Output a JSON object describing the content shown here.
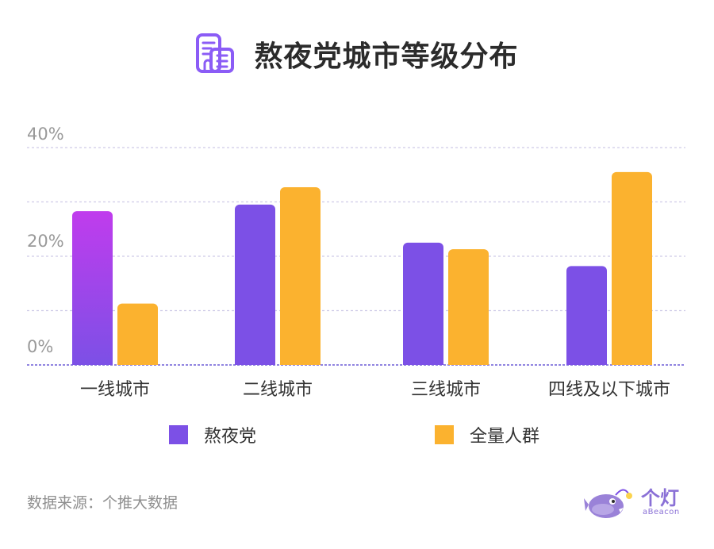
{
  "title": "熬夜党城市等级分布",
  "source": "数据来源：个推大数据",
  "logo": {
    "text": "个灯",
    "sub": "aBeacon"
  },
  "icons": {
    "title": "building-icon",
    "logo": "anglerfish-mascot-icon"
  },
  "colors": {
    "series_1": "#7c50e6",
    "series_1_highlight": "#c03ced",
    "series_2": "#fbb22f",
    "grid": "#cfcbe8",
    "baseline": "#6b5bd6",
    "axis_text": "#999999",
    "category_text": "#333333"
  },
  "chart_data": {
    "type": "bar",
    "categories": [
      "一线城市",
      "二线城市",
      "三线城市",
      "四线及以下城市"
    ],
    "series": [
      {
        "name": "熬夜党",
        "values": [
          28.3,
          29.5,
          22.5,
          18.2
        ]
      },
      {
        "name": "全量人群",
        "values": [
          11.3,
          32.7,
          21.3,
          35.5
        ]
      }
    ],
    "y_ticks": [
      "0%",
      "20%",
      "40%"
    ],
    "ylim": [
      0,
      40
    ],
    "grid": true,
    "legend": "bottom",
    "highlight": {
      "series": 0,
      "category": 0
    }
  }
}
